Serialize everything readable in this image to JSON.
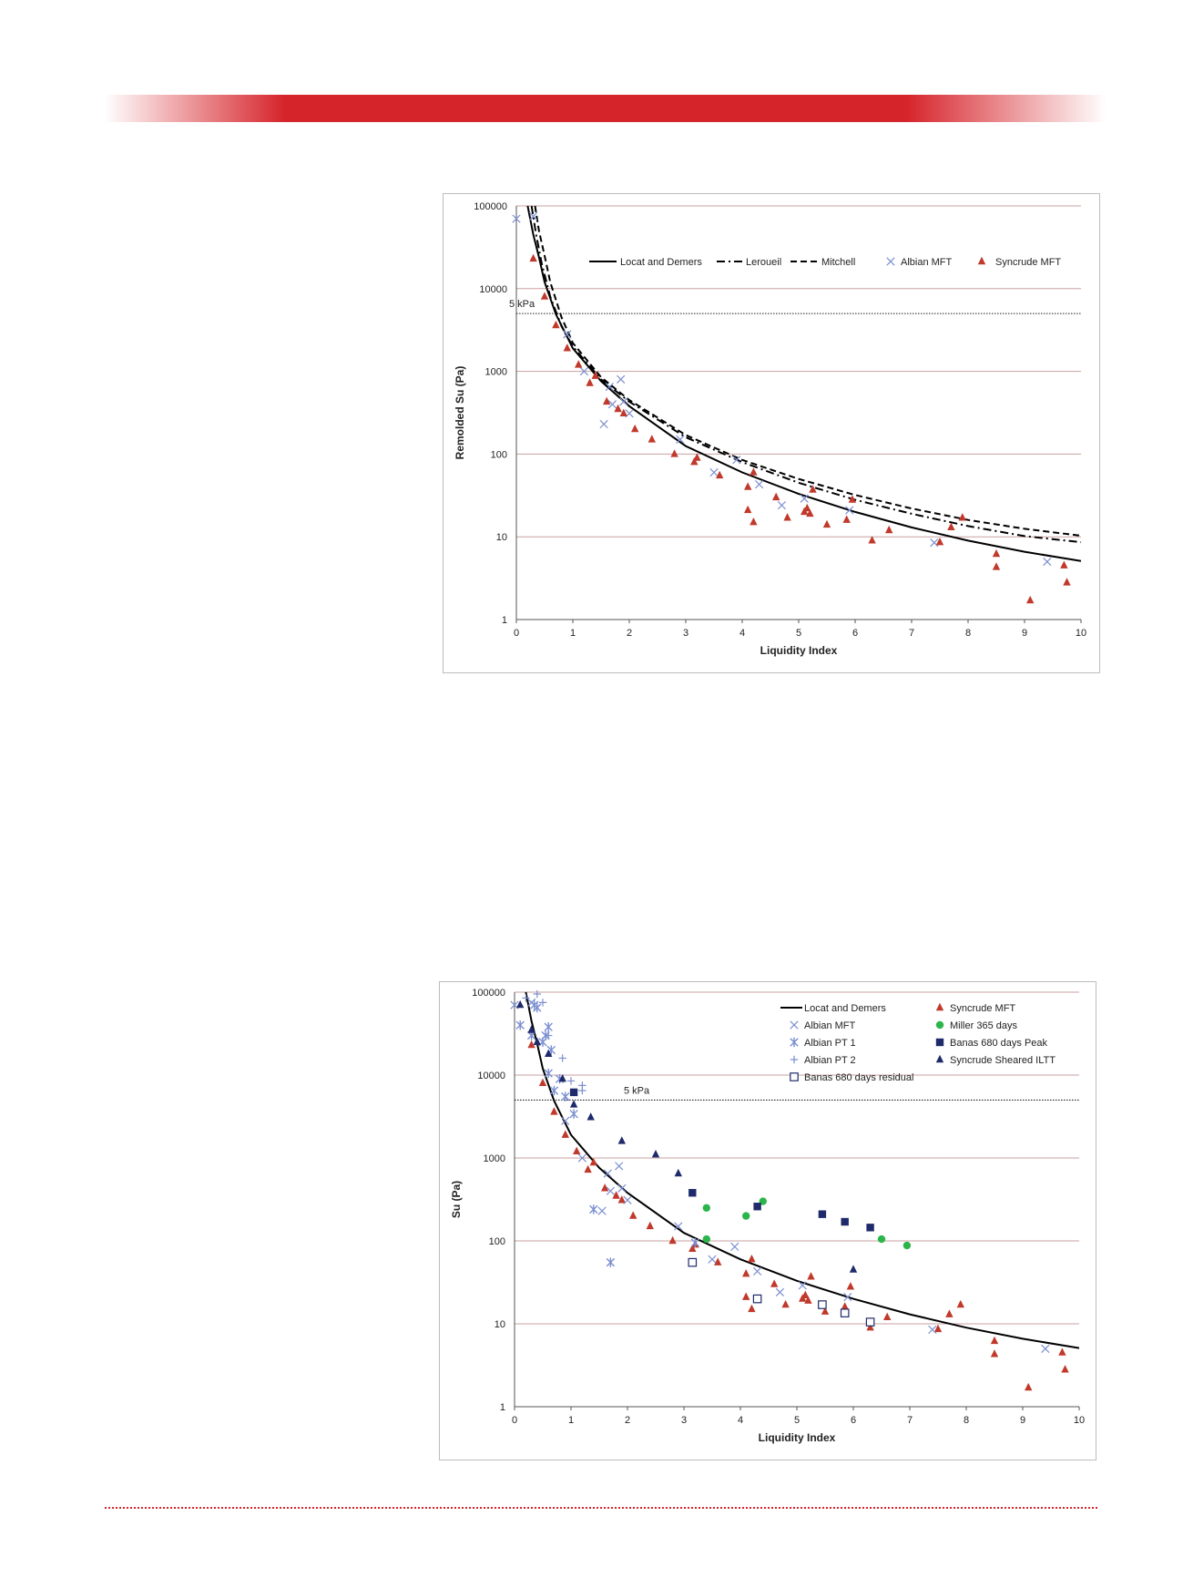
{
  "colors": {
    "banner": "#d6242b",
    "gridline": "#c9a0a0",
    "albian": "#7b8fd0",
    "syncrude": "#c0392b",
    "navy": "#1f2a6b",
    "green": "#2bb54a",
    "curve": "#000000"
  },
  "chart_data": [
    {
      "type": "scatter",
      "title": "",
      "xlabel": "Liquidity Index",
      "ylabel": "Remolded Su (Pa)",
      "xlim": [
        0,
        10
      ],
      "ylim": [
        1,
        100000
      ],
      "yscale": "log",
      "x_ticks": [
        "0",
        "1",
        "2",
        "3",
        "4",
        "5",
        "6",
        "7",
        "8",
        "9",
        "10"
      ],
      "y_ticks": [
        "1",
        "10",
        "100",
        "1000",
        "10000",
        "100000"
      ],
      "grid": "horizontal",
      "legend_position": "top",
      "reference_line": {
        "y": 5000,
        "label": "5 kPa"
      },
      "curves": [
        {
          "name": "Locat and Demers",
          "style": "solid",
          "points": [
            [
              0.2,
              100000
            ],
            [
              0.3,
              45000
            ],
            [
              0.4,
              24000
            ],
            [
              0.5,
              12000
            ],
            [
              0.7,
              4900
            ],
            [
              1.0,
              1900
            ],
            [
              1.5,
              760
            ],
            [
              2.0,
              380
            ],
            [
              3.0,
              125
            ],
            [
              4.0,
              60
            ],
            [
              5.0,
              33
            ],
            [
              6.0,
              20
            ],
            [
              7.0,
              13
            ],
            [
              8.0,
              9
            ],
            [
              9.0,
              6.6
            ],
            [
              10.0,
              5.1
            ]
          ]
        },
        {
          "name": "Leroueil",
          "style": "dashdot",
          "points": [
            [
              0.27,
              100000
            ],
            [
              0.35,
              45000
            ],
            [
              0.45,
              20000
            ],
            [
              0.6,
              8000
            ],
            [
              0.8,
              3500
            ],
            [
              1.0,
              2000
            ],
            [
              1.5,
              800
            ],
            [
              2.0,
              430
            ],
            [
              3.0,
              160
            ],
            [
              4.0,
              80
            ],
            [
              5.0,
              45
            ],
            [
              6.0,
              28
            ],
            [
              7.0,
              19
            ],
            [
              8.0,
              13.5
            ],
            [
              9.0,
              10.2
            ],
            [
              10.0,
              8.6
            ]
          ]
        },
        {
          "name": "Mitchell",
          "style": "dashed",
          "points": [
            [
              0.33,
              100000
            ],
            [
              0.4,
              50000
            ],
            [
              0.5,
              25000
            ],
            [
              0.6,
              12000
            ],
            [
              0.8,
              4500
            ],
            [
              1.0,
              2200
            ],
            [
              1.5,
              850
            ],
            [
              2.0,
              450
            ],
            [
              3.0,
              170
            ],
            [
              4.0,
              85
            ],
            [
              5.0,
              50
            ],
            [
              6.0,
              32
            ],
            [
              7.0,
              22
            ],
            [
              8.0,
              16
            ],
            [
              9.0,
              12.5
            ],
            [
              10.0,
              10.3
            ]
          ]
        }
      ],
      "series": [
        {
          "name": "Albian MFT",
          "marker": "x",
          "points": [
            [
              0.0,
              70000
            ],
            [
              0.3,
              75000
            ],
            [
              0.9,
              2800
            ],
            [
              1.2,
              1000
            ],
            [
              1.55,
              230
            ],
            [
              1.65,
              650
            ],
            [
              1.7,
              400
            ],
            [
              1.85,
              800
            ],
            [
              1.9,
              430
            ],
            [
              2.0,
              310
            ],
            [
              2.9,
              150
            ],
            [
              3.5,
              60
            ],
            [
              3.9,
              85
            ],
            [
              4.3,
              43
            ],
            [
              4.7,
              24
            ],
            [
              5.1,
              29
            ],
            [
              5.9,
              21
            ],
            [
              7.4,
              8.5
            ],
            [
              9.4,
              5.0
            ]
          ]
        },
        {
          "name": "Syncrude MFT",
          "marker": "triangle",
          "points": [
            [
              0.3,
              23000
            ],
            [
              0.5,
              8000
            ],
            [
              0.7,
              3600
            ],
            [
              0.9,
              1900
            ],
            [
              1.1,
              1200
            ],
            [
              1.3,
              720
            ],
            [
              1.4,
              880
            ],
            [
              1.6,
              430
            ],
            [
              1.8,
              350
            ],
            [
              1.9,
              310
            ],
            [
              2.1,
              200
            ],
            [
              2.4,
              150
            ],
            [
              2.8,
              100
            ],
            [
              3.15,
              80
            ],
            [
              3.2,
              90
            ],
            [
              3.6,
              55
            ],
            [
              4.1,
              40
            ],
            [
              4.1,
              21
            ],
            [
              4.2,
              15
            ],
            [
              4.2,
              60
            ],
            [
              4.6,
              30
            ],
            [
              4.8,
              17
            ],
            [
              5.1,
              20
            ],
            [
              5.15,
              22
            ],
            [
              5.2,
              19
            ],
            [
              5.25,
              37
            ],
            [
              5.5,
              14
            ],
            [
              5.85,
              16
            ],
            [
              5.95,
              28
            ],
            [
              6.3,
              9
            ],
            [
              6.6,
              12
            ],
            [
              7.5,
              8.6
            ],
            [
              7.7,
              13
            ],
            [
              7.9,
              17
            ],
            [
              8.5,
              6.2
            ],
            [
              8.5,
              4.3
            ],
            [
              9.1,
              1.7
            ],
            [
              9.7,
              4.5
            ],
            [
              9.75,
              2.8
            ]
          ]
        }
      ]
    },
    {
      "type": "scatter",
      "title": "",
      "xlabel": "Liquidity Index",
      "ylabel": "Su (Pa)",
      "xlim": [
        0,
        10
      ],
      "ylim": [
        1,
        100000
      ],
      "yscale": "log",
      "x_ticks": [
        "0",
        "1",
        "2",
        "3",
        "4",
        "5",
        "6",
        "7",
        "8",
        "9",
        "10"
      ],
      "y_ticks": [
        "1",
        "10",
        "100",
        "1000",
        "10000",
        "100000"
      ],
      "grid": "horizontal",
      "legend_position": "top-right",
      "reference_line": {
        "y": 5000,
        "label": "5 kPa"
      },
      "curves": [
        {
          "name": "Locat and Demers",
          "style": "solid",
          "points": [
            [
              0.2,
              100000
            ],
            [
              0.3,
              45000
            ],
            [
              0.4,
              24000
            ],
            [
              0.5,
              12000
            ],
            [
              0.7,
              4900
            ],
            [
              1.0,
              1900
            ],
            [
              1.5,
              760
            ],
            [
              2.0,
              380
            ],
            [
              3.0,
              125
            ],
            [
              4.0,
              60
            ],
            [
              5.0,
              33
            ],
            [
              6.0,
              20
            ],
            [
              7.0,
              13
            ],
            [
              8.0,
              9
            ],
            [
              9.0,
              6.6
            ],
            [
              10.0,
              5.1
            ]
          ]
        }
      ],
      "series": [
        {
          "name": "Syncrude MFT",
          "marker": "triangle",
          "points": [
            [
              0.3,
              23000
            ],
            [
              0.5,
              8000
            ],
            [
              0.7,
              3600
            ],
            [
              0.9,
              1900
            ],
            [
              1.1,
              1200
            ],
            [
              1.3,
              720
            ],
            [
              1.4,
              880
            ],
            [
              1.6,
              430
            ],
            [
              1.8,
              350
            ],
            [
              1.9,
              310
            ],
            [
              2.1,
              200
            ],
            [
              2.4,
              150
            ],
            [
              2.8,
              100
            ],
            [
              3.15,
              80
            ],
            [
              3.2,
              90
            ],
            [
              3.6,
              55
            ],
            [
              4.1,
              40
            ],
            [
              4.1,
              21
            ],
            [
              4.2,
              15
            ],
            [
              4.2,
              60
            ],
            [
              4.6,
              30
            ],
            [
              4.8,
              17
            ],
            [
              5.1,
              20
            ],
            [
              5.15,
              22
            ],
            [
              5.2,
              19
            ],
            [
              5.25,
              37
            ],
            [
              5.5,
              14
            ],
            [
              5.85,
              16
            ],
            [
              5.95,
              28
            ],
            [
              6.3,
              9
            ],
            [
              6.6,
              12
            ],
            [
              7.5,
              8.6
            ],
            [
              7.7,
              13
            ],
            [
              7.9,
              17
            ],
            [
              8.5,
              6.2
            ],
            [
              8.5,
              4.3
            ],
            [
              9.1,
              1.7
            ],
            [
              9.7,
              4.5
            ],
            [
              9.75,
              2.8
            ]
          ]
        },
        {
          "name": "Albian MFT",
          "marker": "x",
          "points": [
            [
              0.0,
              70000
            ],
            [
              0.3,
              75000
            ],
            [
              0.9,
              2800
            ],
            [
              1.2,
              1000
            ],
            [
              1.55,
              230
            ],
            [
              1.65,
              650
            ],
            [
              1.7,
              400
            ],
            [
              1.85,
              800
            ],
            [
              1.9,
              430
            ],
            [
              2.0,
              310
            ],
            [
              2.9,
              150
            ],
            [
              3.5,
              60
            ],
            [
              3.9,
              85
            ],
            [
              4.3,
              43
            ],
            [
              4.7,
              24
            ],
            [
              5.1,
              29
            ],
            [
              5.9,
              21
            ],
            [
              7.4,
              8.5
            ],
            [
              9.4,
              5.0
            ]
          ]
        },
        {
          "name": "Miller 365 days",
          "marker": "circle",
          "points": [
            [
              3.4,
              250
            ],
            [
              3.4,
              105
            ],
            [
              4.1,
              200
            ],
            [
              4.4,
              300
            ],
            [
              6.5,
              105
            ],
            [
              6.95,
              88
            ]
          ]
        },
        {
          "name": "Albian PT 1",
          "marker": "asterisk",
          "points": [
            [
              0.1,
              40000
            ],
            [
              0.3,
              30000
            ],
            [
              0.35,
              70000
            ],
            [
              0.4,
              65000
            ],
            [
              0.5,
              25000
            ],
            [
              0.55,
              30000
            ],
            [
              0.6,
              38000
            ],
            [
              0.65,
              20000
            ],
            [
              0.6,
              10500
            ],
            [
              0.7,
              6500
            ],
            [
              0.8,
              9000
            ],
            [
              0.9,
              5500
            ],
            [
              1.05,
              3400
            ],
            [
              1.4,
              240
            ],
            [
              1.7,
              55
            ],
            [
              3.2,
              95
            ]
          ]
        },
        {
          "name": "Banas 680 days Peak",
          "marker": "square",
          "points": [
            [
              1.05,
              6200
            ],
            [
              3.15,
              380
            ],
            [
              4.3,
              260
            ],
            [
              5.45,
              210
            ],
            [
              5.85,
              170
            ],
            [
              6.3,
              145
            ]
          ]
        },
        {
          "name": "Albian PT 2",
          "marker": "plus",
          "points": [
            [
              0.2,
              85000
            ],
            [
              0.4,
              95000
            ],
            [
              0.5,
              75000
            ],
            [
              0.6,
              30000
            ],
            [
              0.85,
              16000
            ],
            [
              1.0,
              8500
            ],
            [
              1.2,
              7500
            ],
            [
              1.2,
              6500
            ]
          ]
        },
        {
          "name": "Syncrude Sheared ILTT",
          "marker": "triangle",
          "points": [
            [
              0.1,
              70000
            ],
            [
              0.3,
              35000
            ],
            [
              0.4,
              25000
            ],
            [
              0.6,
              18000
            ],
            [
              0.85,
              9000
            ],
            [
              1.05,
              4400
            ],
            [
              1.35,
              3100
            ],
            [
              1.9,
              1600
            ],
            [
              2.5,
              1100
            ],
            [
              2.9,
              650
            ],
            [
              6.0,
              45
            ]
          ]
        },
        {
          "name": "Banas 680 days residual",
          "marker": "open-square",
          "points": [
            [
              3.15,
              55
            ],
            [
              4.3,
              20
            ],
            [
              5.45,
              17
            ],
            [
              5.85,
              13.5
            ],
            [
              6.3,
              10.5
            ]
          ]
        }
      ]
    }
  ]
}
